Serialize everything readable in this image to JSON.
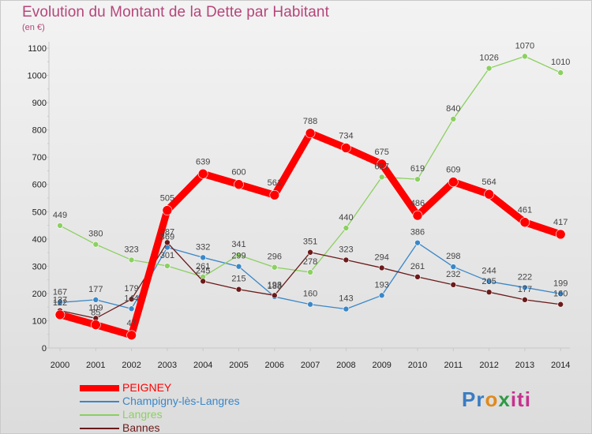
{
  "title": "Evolution du Montant de la Dette par Habitant",
  "unit_label": "(en €)",
  "logo": {
    "text": "Proxiti",
    "parts": [
      "Pr",
      "o",
      "x",
      "iti"
    ]
  },
  "colors": {
    "title": "#b5467a",
    "PEIGNEY": "#ff0000",
    "Champigny-lès-Langres": "#3a87c8",
    "Langres": "#8bd060",
    "Bannes": "#6b1a1a"
  },
  "chart_data": {
    "type": "line",
    "title": "Evolution du Montant de la Dette par Habitant",
    "ylabel": "(en €)",
    "xlabel": "",
    "x": [
      "2000",
      "2001",
      "2002",
      "2003",
      "2004",
      "2005",
      "2006",
      "2007",
      "2008",
      "2009",
      "2010",
      "2011",
      "2012",
      "2013",
      "2014"
    ],
    "y_ticks": [
      "0",
      "100",
      "200",
      "300",
      "400",
      "500",
      "600",
      "700",
      "800",
      "900",
      "1000",
      "1100"
    ],
    "ylim": [
      0,
      1100
    ],
    "grid": false,
    "legend": "bottom-left",
    "series": [
      {
        "name": "PEIGNEY",
        "values": [
          122,
          85,
          47,
          505,
          639,
          600,
          561,
          788,
          734,
          675,
          486,
          609,
          564,
          461,
          417
        ],
        "labels": [
          "122",
          "85",
          "47",
          "505",
          "639",
          "600",
          "561",
          "788",
          "734",
          "675",
          "486",
          "609",
          "564",
          "461",
          "417"
        ]
      },
      {
        "name": "Champigny-lès-Langres",
        "values": [
          167,
          177,
          144,
          369,
          332,
          299,
          188,
          160,
          143,
          193,
          386,
          298,
          244,
          222,
          199
        ],
        "labels": [
          "167",
          "177",
          "144",
          "369",
          "332",
          "299",
          "188",
          "160",
          "143",
          "193",
          "386",
          "298",
          "244",
          "222",
          "199"
        ]
      },
      {
        "name": "Langres",
        "values": [
          449,
          380,
          323,
          301,
          261,
          341,
          296,
          278,
          440,
          627,
          619,
          840,
          1026,
          1070,
          1010
        ],
        "labels": [
          "449",
          "380",
          "323",
          "301",
          "261",
          "341",
          "296",
          "278",
          "440",
          "627",
          "619",
          "840",
          "1026",
          "1070",
          "1010"
        ]
      },
      {
        "name": "Bannes",
        "values": [
          137,
          109,
          179,
          387,
          245,
          215,
          193,
          351,
          323,
          294,
          261,
          232,
          205,
          177,
          160
        ],
        "labels": [
          "137",
          "109",
          "179",
          "387",
          "245",
          "215",
          "193",
          "351",
          "323",
          "294",
          "261",
          "232",
          "205",
          "177",
          "160"
        ]
      }
    ]
  }
}
